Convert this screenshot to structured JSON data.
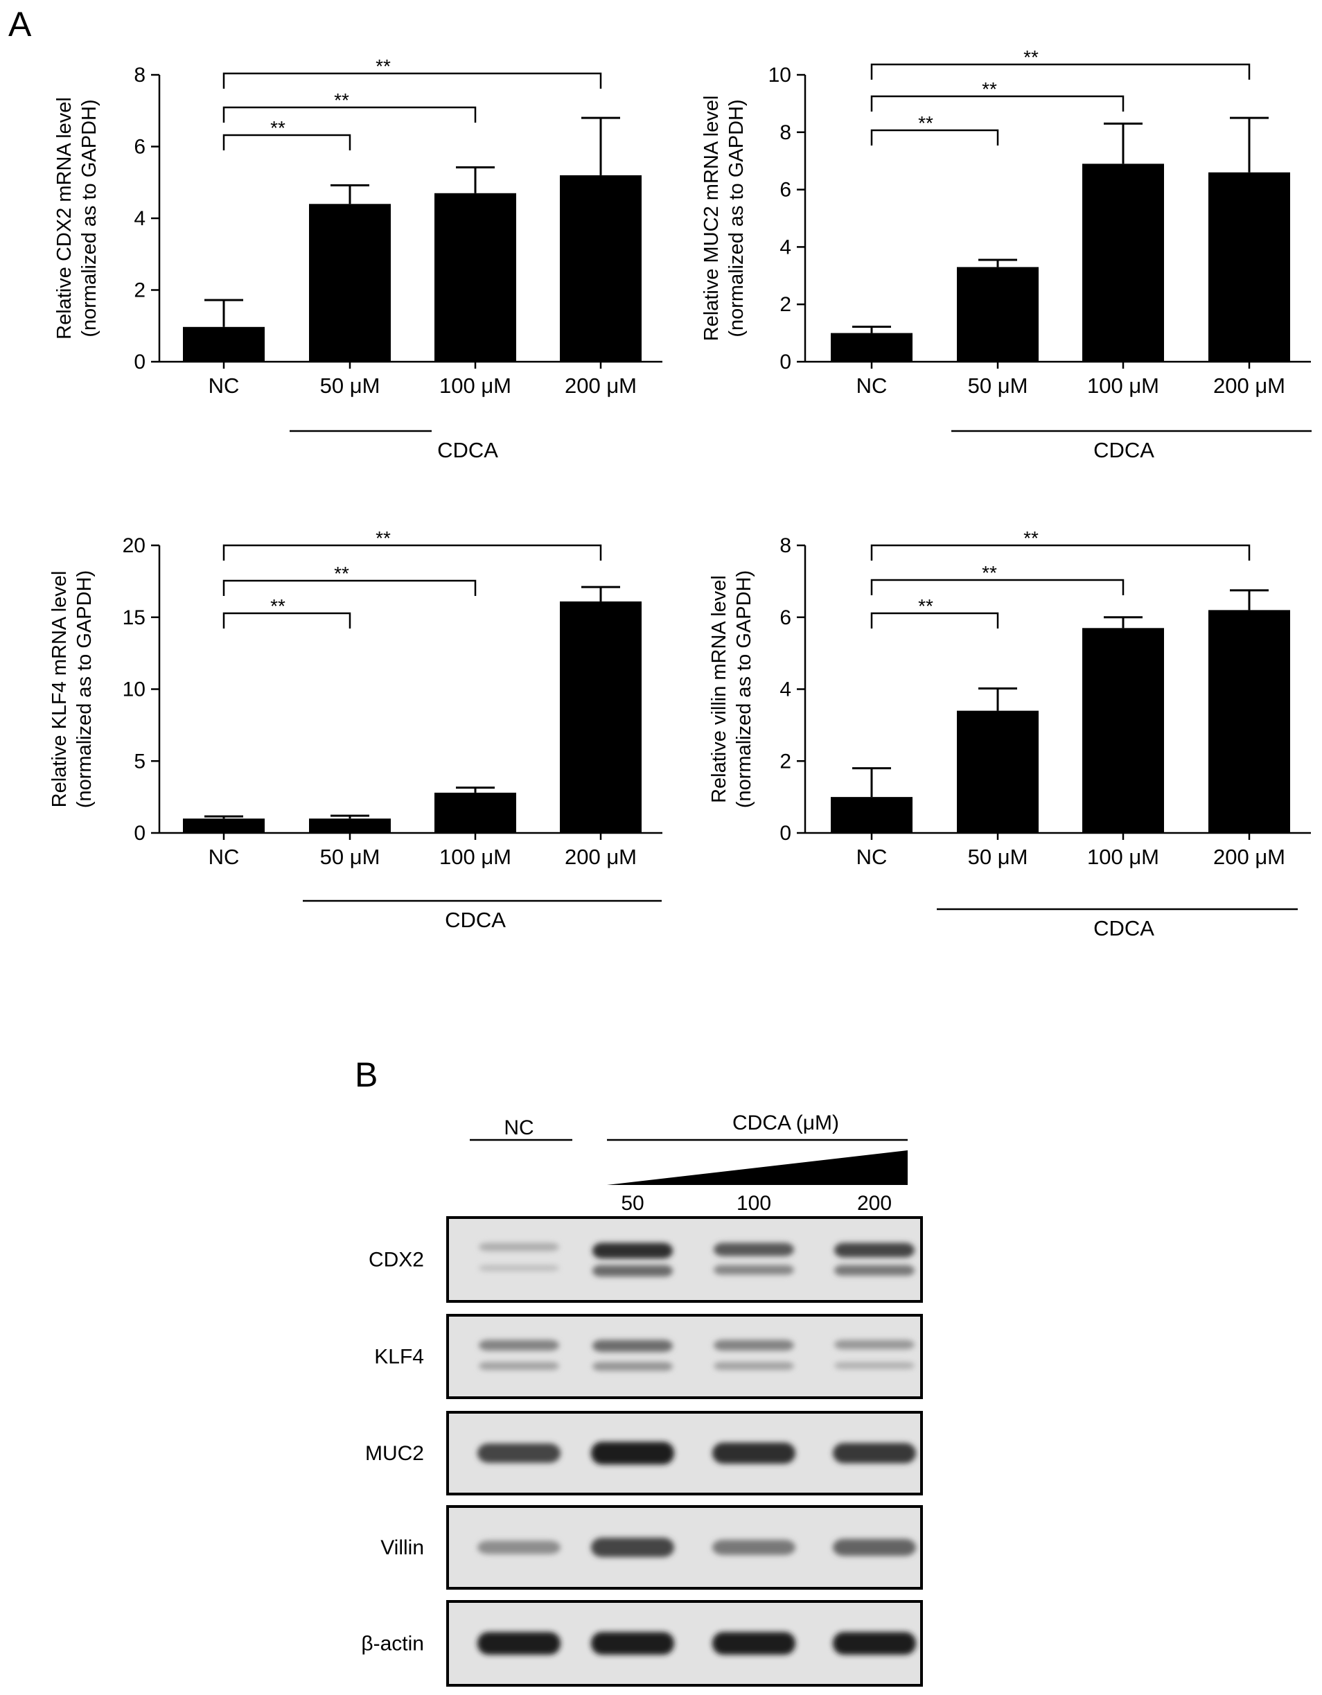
{
  "panel_a": {
    "letter": "A"
  },
  "panel_b": {
    "letter": "B",
    "nc_label": "NC",
    "treatment_label": "CDCA (μM)",
    "doses": [
      "50",
      "100",
      "200"
    ],
    "blots": [
      {
        "name": "CDX2",
        "intensities": [
          0.25,
          0.85,
          0.65,
          0.75
        ],
        "bands": 2
      },
      {
        "name": "KLF4",
        "intensities": [
          0.45,
          0.55,
          0.45,
          0.35
        ],
        "bands": 2
      },
      {
        "name": "MUC2",
        "intensities": [
          0.75,
          0.95,
          0.85,
          0.8
        ],
        "bands": 1
      },
      {
        "name": "Villin",
        "intensities": [
          0.4,
          0.75,
          0.5,
          0.6
        ],
        "bands": 1
      },
      {
        "name": "β-actin",
        "intensities": [
          0.95,
          0.95,
          0.95,
          0.95
        ],
        "bands": 1
      }
    ]
  },
  "chart_data": [
    {
      "type": "bar",
      "ylabel_line1": "Relative CDX2 mRNA level",
      "ylabel_line2": "(normalized as to GAPDH)",
      "categories": [
        "NC",
        "50 μM",
        "100 μM",
        "200 μM"
      ],
      "values": [
        0.97,
        4.4,
        4.7,
        5.2
      ],
      "errors": [
        0.75,
        0.52,
        0.72,
        1.6
      ],
      "ylim": [
        0,
        8
      ],
      "yticks": [
        "0",
        "2",
        "4",
        "6",
        "8"
      ],
      "group_label": "CDCA",
      "significance": [
        "**",
        "**",
        "**"
      ],
      "bar_color": "#000000"
    },
    {
      "type": "bar",
      "ylabel_line1": "Relative MUC2 mRNA level",
      "ylabel_line2": "(normalized as to GAPDH)",
      "categories": [
        "NC",
        "50 μM",
        "100 μM",
        "200 μM"
      ],
      "values": [
        1.0,
        3.3,
        6.9,
        6.6
      ],
      "errors": [
        0.22,
        0.25,
        1.4,
        1.9
      ],
      "ylim": [
        0,
        10
      ],
      "yticks": [
        "0",
        "2",
        "4",
        "6",
        "8",
        "10"
      ],
      "group_label": "CDCA",
      "significance": [
        "**",
        "**",
        "**"
      ],
      "bar_color": "#000000"
    },
    {
      "type": "bar",
      "ylabel_line1": "Relative KLF4 mRNA level",
      "ylabel_line2": "(normalized as to GAPDH)",
      "categories": [
        "NC",
        "50 μM",
        "100 μM",
        "200 μM"
      ],
      "values": [
        1.0,
        1.0,
        2.8,
        16.1
      ],
      "errors": [
        0.15,
        0.2,
        0.35,
        1.0
      ],
      "ylim": [
        0,
        20
      ],
      "yticks": [
        "0",
        "5",
        "10",
        "15",
        "20"
      ],
      "group_label": "CDCA",
      "significance": [
        "**",
        "**",
        "**"
      ],
      "bar_color": "#000000"
    },
    {
      "type": "bar",
      "ylabel_line1": "Relative villin mRNA level",
      "ylabel_line2": "(normalized as to GAPDH)",
      "categories": [
        "NC",
        "50 μM",
        "100 μM",
        "200 μM"
      ],
      "values": [
        1.0,
        3.4,
        5.7,
        6.2
      ],
      "errors": [
        0.8,
        0.62,
        0.3,
        0.55
      ],
      "ylim": [
        0,
        8
      ],
      "yticks": [
        "0",
        "2",
        "4",
        "6",
        "8"
      ],
      "group_label": "CDCA",
      "significance": [
        "**",
        "**",
        "**"
      ],
      "bar_color": "#000000"
    }
  ]
}
